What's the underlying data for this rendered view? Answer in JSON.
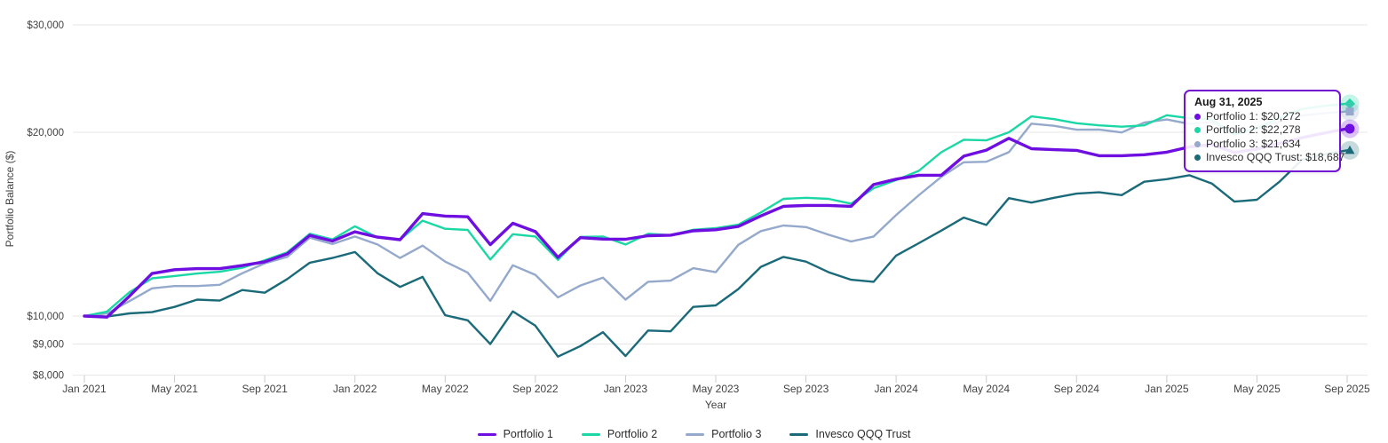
{
  "page": {
    "background": "#ffffff"
  },
  "colors": {
    "grid": "#e7e7e7",
    "tick_mark": "#cccccc",
    "axis_text": "#424242",
    "tooltip_border": "#7313d2"
  },
  "chart_data": {
    "type": "line",
    "title": "",
    "xlabel": "Year",
    "ylabel": "Portfolio Balance ($)",
    "y_scale": "log",
    "grid": true,
    "legend_position": "bottom",
    "ylim": [
      7800,
      31000
    ],
    "y_ticks": [
      {
        "value": 8000,
        "label": "$8,000"
      },
      {
        "value": 9000,
        "label": "$9,000"
      },
      {
        "value": 10000,
        "label": "$10,000"
      },
      {
        "value": 20000,
        "label": "$20,000"
      },
      {
        "value": 30000,
        "label": "$30,000"
      }
    ],
    "x_tick_labels": [
      "Jan 2021",
      "May 2021",
      "Sep 2021",
      "Jan 2022",
      "May 2022",
      "Sep 2022",
      "Jan 2023",
      "May 2023",
      "Sep 2023",
      "Jan 2024",
      "May 2024",
      "Sep 2024",
      "Jan 2025",
      "May 2025",
      "Sep 2025"
    ],
    "x": [
      "2021-01-01",
      "2021-01-31",
      "2021-02-28",
      "2021-03-31",
      "2021-04-30",
      "2021-05-31",
      "2021-06-30",
      "2021-07-31",
      "2021-08-31",
      "2021-09-30",
      "2021-10-31",
      "2021-11-30",
      "2021-12-31",
      "2022-01-31",
      "2022-02-28",
      "2022-03-31",
      "2022-04-30",
      "2022-05-31",
      "2022-06-30",
      "2022-07-31",
      "2022-08-31",
      "2022-09-30",
      "2022-10-31",
      "2022-11-30",
      "2022-12-31",
      "2023-01-31",
      "2023-02-28",
      "2023-03-31",
      "2023-04-30",
      "2023-05-31",
      "2023-06-30",
      "2023-07-31",
      "2023-08-31",
      "2023-09-30",
      "2023-10-31",
      "2023-11-30",
      "2023-12-31",
      "2024-01-31",
      "2024-02-29",
      "2024-03-31",
      "2024-04-30",
      "2024-05-31",
      "2024-06-30",
      "2024-07-31",
      "2024-08-31",
      "2024-09-30",
      "2024-10-31",
      "2024-11-30",
      "2024-12-31",
      "2025-01-31",
      "2025-02-28",
      "2025-03-31",
      "2025-04-30",
      "2025-05-31",
      "2025-06-30",
      "2025-07-31",
      "2025-08-31"
    ],
    "series": [
      {
        "name": "Portfolio 1",
        "color": "#6e0ee0",
        "line_width": 3.4,
        "marker": "circle",
        "end_value": 20272,
        "end_label": "$20,272",
        "values": [
          10000,
          9960,
          10780,
          11740,
          11910,
          11960,
          11960,
          12100,
          12270,
          12640,
          13560,
          13270,
          13740,
          13470,
          13340,
          14720,
          14580,
          14540,
          13090,
          14190,
          13750,
          12480,
          13440,
          13370,
          13360,
          13540,
          13570,
          13790,
          13850,
          14020,
          14590,
          15130,
          15180,
          15180,
          15130,
          16420,
          16760,
          17010,
          17010,
          18280,
          18700,
          19550,
          18800,
          18730,
          18680,
          18310,
          18310,
          18380,
          18560,
          18930,
          19100,
          18540,
          18770,
          19180,
          19600,
          19950,
          20272
        ]
      },
      {
        "name": "Portfolio 2",
        "color": "#1bd7a5",
        "line_width": 2.4,
        "marker": "diamond",
        "end_value": 22278,
        "end_label": "$22,278",
        "values": [
          10000,
          10170,
          10940,
          11530,
          11630,
          11740,
          11820,
          12000,
          12340,
          12720,
          13640,
          13350,
          14030,
          13450,
          13340,
          14330,
          13900,
          13840,
          12380,
          13620,
          13500,
          12360,
          13480,
          13500,
          13100,
          13640,
          13570,
          13850,
          13930,
          14120,
          14780,
          15560,
          15620,
          15560,
          15280,
          16200,
          16700,
          17290,
          18550,
          19450,
          19400,
          20000,
          21240,
          21020,
          20700,
          20530,
          20430,
          20530,
          21330,
          21090,
          20990,
          19830,
          20320,
          21120,
          21840,
          22100,
          22278
        ]
      },
      {
        "name": "Portfolio 3",
        "color": "#94a9cb",
        "line_width": 2.4,
        "marker": "square",
        "end_value": 21634,
        "end_label": "$21,634",
        "values": [
          10000,
          10100,
          10580,
          11100,
          11200,
          11200,
          11250,
          11750,
          12200,
          12500,
          13440,
          13120,
          13500,
          13100,
          12450,
          13040,
          12280,
          11780,
          10590,
          12110,
          11680,
          10730,
          11220,
          11560,
          10640,
          11380,
          11430,
          11980,
          11800,
          13080,
          13780,
          14070,
          13990,
          13590,
          13250,
          13500,
          14640,
          15770,
          16900,
          17860,
          17900,
          18560,
          20660,
          20500,
          20200,
          20210,
          19990,
          20750,
          20990,
          20640,
          20800,
          19990,
          20250,
          20800,
          21300,
          21500,
          21634
        ]
      },
      {
        "name": "Invesco QQQ Trust",
        "color": "#1a6a7a",
        "line_width": 2.4,
        "marker": "triangle",
        "end_value": 18687,
        "end_label": "$18,687",
        "values": [
          10000,
          9980,
          10100,
          10150,
          10350,
          10640,
          10600,
          11030,
          10920,
          11500,
          12230,
          12450,
          12730,
          11750,
          11160,
          11590,
          10030,
          9840,
          9000,
          10180,
          9640,
          8580,
          8930,
          9410,
          8600,
          9470,
          9440,
          10350,
          10410,
          11070,
          12040,
          12500,
          12280,
          11800,
          11470,
          11380,
          12560,
          13160,
          13800,
          14500,
          14100,
          15600,
          15340,
          15620,
          15870,
          15950,
          15780,
          16600,
          16760,
          17010,
          16490,
          15400,
          15510,
          16600,
          18030,
          18400,
          18687
        ]
      }
    ]
  },
  "tooltip": {
    "title": "Aug 31, 2025",
    "items": [
      {
        "label": "Portfolio 1: $20,272",
        "color": "#6e0ee0"
      },
      {
        "label": "Portfolio 2: $22,278",
        "color": "#1bd7a5"
      },
      {
        "label": "Portfolio 3: $21,634",
        "color": "#94a9cb"
      },
      {
        "label": "Invesco QQQ Trust: $18,687",
        "color": "#1a6a7a"
      }
    ]
  }
}
